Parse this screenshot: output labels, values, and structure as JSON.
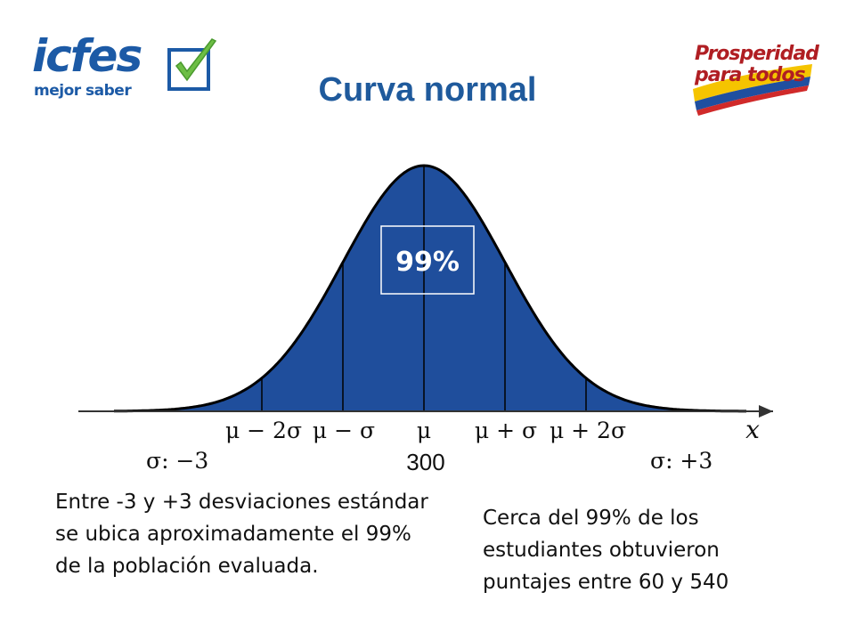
{
  "header": {
    "logo_left": {
      "brand": "icfes",
      "tagline": "mejor saber",
      "icon": "checkmark-icon",
      "color": "#1c5aa6",
      "check_color": "#6dbe45"
    },
    "logo_right": {
      "line1": "Prosperidad",
      "line2": "para todos",
      "icon": "flag-icon",
      "color": "#b01e23"
    },
    "title": "Curva normal"
  },
  "diagram": {
    "fill_color": "#1f4e9c",
    "percent_label": "99%",
    "axis_var": "x",
    "tick_labels": [
      "μ − 2σ",
      "μ − σ",
      "μ",
      "μ + σ",
      "μ + 2σ"
    ],
    "sigma_left": "σ: −3",
    "sigma_right": "σ: +3",
    "center_value": "300"
  },
  "notes": {
    "left": "Entre -3 y +3 desviaciones estándar se ubica aproximadamente el 99% de la población evaluada.",
    "right": "Cerca del 99% de los estudiantes obtuvieron puntajes entre 60 y 540"
  }
}
